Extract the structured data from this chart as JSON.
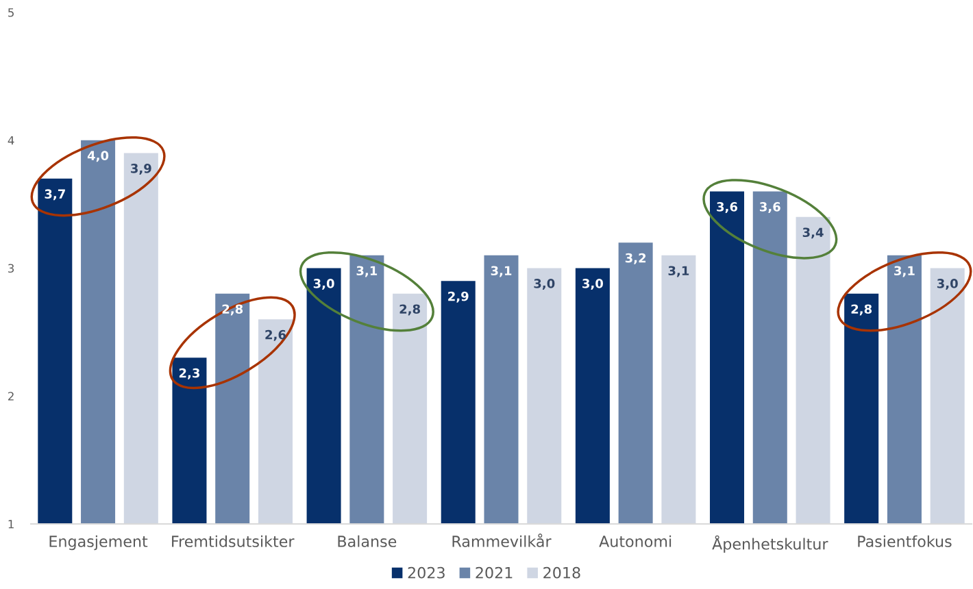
{
  "chart_data": {
    "type": "bar",
    "categories": [
      "Engasjement",
      "Fremtidsutsikter",
      "Balanse",
      "Rammevilkår",
      "Autonomi",
      "Åpenhetskultur",
      "Pasientfokus"
    ],
    "series": [
      {
        "name": "2023",
        "color": "#07306b",
        "values": [
          3.7,
          2.3,
          3.0,
          2.9,
          3.0,
          3.6,
          2.8
        ],
        "value_labels": [
          "3,7",
          "2,3",
          "3,0",
          "2,9",
          "3,0",
          "3,6",
          "2,8"
        ]
      },
      {
        "name": "2021",
        "color": "#6a84a9",
        "values": [
          4.0,
          2.8,
          3.1,
          3.1,
          3.2,
          3.6,
          3.1
        ],
        "value_labels": [
          "4,0",
          "2,8",
          "3,1",
          "3,1",
          "3,2",
          "3,6",
          "3,1"
        ]
      },
      {
        "name": "2018",
        "color": "#cfd6e3",
        "values": [
          3.9,
          2.6,
          2.8,
          3.0,
          3.1,
          3.4,
          3.0
        ],
        "value_labels": [
          "3,9",
          "2,6",
          "2,8",
          "3,0",
          "3,1",
          "3,4",
          "3,0"
        ]
      }
    ],
    "ylim": [
      1,
      5
    ],
    "yticks": [
      1,
      2,
      3,
      4,
      5
    ],
    "legend": "bottom"
  }
}
